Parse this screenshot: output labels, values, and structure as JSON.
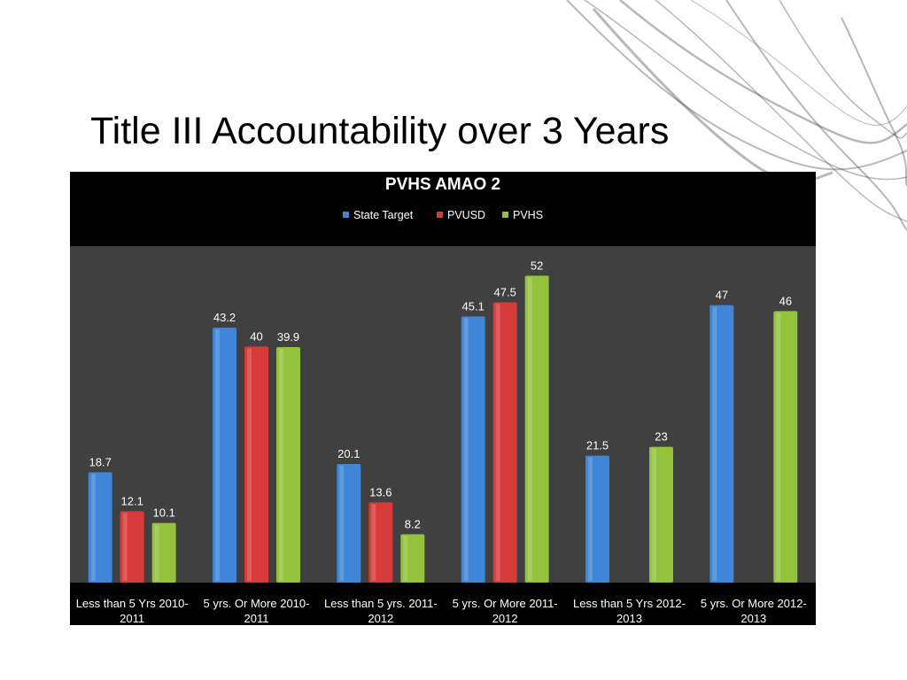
{
  "slide": {
    "title": "Title III Accountability over 3 Years"
  },
  "colors": {
    "header_bg": "#000000",
    "plot_bg": "#404040",
    "text": "#ffffff"
  },
  "chart_data": {
    "type": "bar",
    "title": "PVHS AMAO 2",
    "legend_position": "top",
    "grid": false,
    "ylim": [
      0,
      57
    ],
    "categories": [
      [
        "Less than 5 Yrs 2010-",
        "2011"
      ],
      [
        "5 yrs. Or More 2010-",
        "2011"
      ],
      [
        "Less than 5 yrs. 2011-",
        "2012"
      ],
      [
        "5 yrs. Or More 2011-",
        "2012"
      ],
      [
        "Less than 5 Yrs 2012-",
        "2013"
      ],
      [
        "5 yrs. Or More 2012-",
        "2013"
      ]
    ],
    "series": [
      {
        "name": "State Target",
        "color": "#3f85d8",
        "values": [
          18.7,
          43.2,
          20.1,
          45.1,
          21.5,
          47
        ]
      },
      {
        "name": "PVUSD",
        "color": "#d63a3a",
        "values": [
          12.1,
          40,
          13.6,
          47.5,
          null,
          null
        ]
      },
      {
        "name": "PVHS",
        "color": "#93c23d",
        "values": [
          10.1,
          39.9,
          8.2,
          52,
          23,
          46
        ]
      }
    ]
  }
}
